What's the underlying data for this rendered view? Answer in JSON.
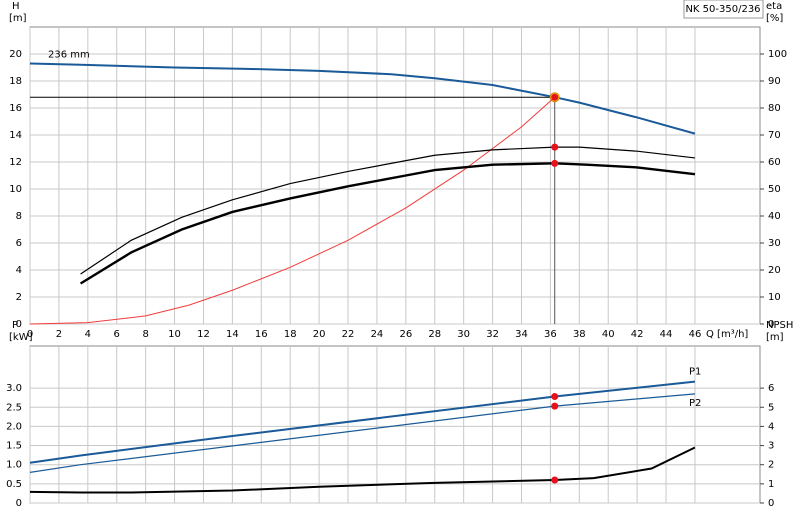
{
  "title": "NK 50-350/236",
  "chart_data": [
    {
      "type": "line",
      "ylabel": "H",
      "yunit": "[m]",
      "y2label": "eta",
      "y2unit": "[%]",
      "xlabel": "Q [m³/h]",
      "xlim": [
        0,
        50.5
      ],
      "xticks": [
        0,
        2,
        4,
        6,
        8,
        10,
        12,
        14,
        16,
        18,
        20,
        22,
        24,
        26,
        28,
        30,
        32,
        34,
        36,
        38,
        40,
        42,
        44,
        46
      ],
      "ylim": [
        0,
        22
      ],
      "yticks": [
        0,
        2,
        4,
        6,
        8,
        10,
        12,
        14,
        16,
        18,
        20
      ],
      "y2lim": [
        0,
        110
      ],
      "y2ticks": [
        0,
        10,
        20,
        30,
        40,
        50,
        60,
        70,
        80,
        90,
        100
      ],
      "grid": true,
      "duty_point": {
        "x": 36.3,
        "y": 16.8
      },
      "duty_color": "#f5c518",
      "marker_color": "#e8101a",
      "series": [
        {
          "name": "236 mm",
          "color": "#1b5a98",
          "width": 2,
          "x": [
            0,
            3.5,
            10,
            15,
            20,
            25,
            28,
            32,
            36.3,
            38,
            42,
            46
          ],
          "values": [
            19.3,
            19.2,
            19.0,
            18.9,
            18.75,
            18.5,
            18.2,
            17.7,
            16.8,
            16.4,
            15.3,
            14.1
          ]
        },
        {
          "color": "#f03c3c",
          "width": 1,
          "x": [
            0,
            4,
            8,
            11,
            14,
            18,
            22,
            26,
            30,
            34,
            36.3
          ],
          "values": [
            0,
            0.1,
            0.6,
            1.4,
            2.5,
            4.2,
            6.2,
            8.6,
            11.4,
            14.6,
            16.8
          ]
        },
        {
          "color": "#000000",
          "width": 1.2,
          "axis": "y2",
          "x": [
            3.5,
            7,
            10.5,
            14,
            18,
            22,
            26,
            28,
            32,
            36.3,
            38,
            42,
            46
          ],
          "values": [
            18.5,
            31,
            39.5,
            46,
            52,
            56.5,
            60.5,
            62.5,
            64.5,
            65.5,
            65.5,
            64,
            61.5
          ]
        },
        {
          "color": "#000000",
          "width": 2.4,
          "axis": "y2",
          "x": [
            3.5,
            7,
            10.5,
            14,
            18,
            22,
            26,
            28,
            32,
            36.3,
            38.5,
            42,
            46
          ],
          "values": [
            15,
            26.5,
            35,
            41.5,
            46.5,
            51,
            55,
            57,
            59,
            59.5,
            59,
            58,
            55.5
          ]
        }
      ]
    },
    {
      "type": "line",
      "ylabel": "P",
      "yunit": "[kW]",
      "y2label": "NPSH",
      "y2unit": "[m]",
      "xlim": [
        0,
        50.5
      ],
      "xticks": [
        0,
        2,
        4,
        6,
        8,
        10,
        12,
        14,
        16,
        18,
        20,
        22,
        24,
        26,
        28,
        30,
        32,
        34,
        36,
        38,
        40,
        42,
        44,
        46
      ],
      "ylim": [
        0,
        4.1
      ],
      "yticks": [
        0,
        0.5,
        {
          "value": 1,
          "label": "1.0"
        },
        1.5,
        {
          "value": 2,
          "label": "2.0"
        },
        2.5,
        {
          "value": 3,
          "label": "3.0"
        }
      ],
      "y2lim": [
        0,
        8.2
      ],
      "y2ticks": [
        0,
        1,
        2,
        3,
        4,
        5,
        6
      ],
      "grid": true,
      "duty_x": 36.3,
      "marker_color": "#e8101a",
      "series": [
        {
          "name": "P1",
          "color": "#1b5a98",
          "width": 2,
          "x": [
            0,
            3.5,
            14,
            36.3,
            46
          ],
          "values": [
            1.05,
            1.24,
            1.75,
            2.78,
            3.17
          ]
        },
        {
          "name": "P2",
          "color": "#1b5a98",
          "width": 1.2,
          "x": [
            0,
            3.5,
            36.3,
            46
          ],
          "values": [
            0.8,
            1.0,
            2.53,
            2.85
          ]
        },
        {
          "color": "#000000",
          "width": 2,
          "axis": "y2",
          "x": [
            0,
            3.5,
            7,
            14,
            20,
            28,
            36.3,
            39,
            43,
            46
          ],
          "values": [
            0.58,
            0.55,
            0.55,
            0.65,
            0.85,
            1.05,
            1.2,
            1.3,
            1.8,
            2.9
          ]
        }
      ]
    }
  ]
}
